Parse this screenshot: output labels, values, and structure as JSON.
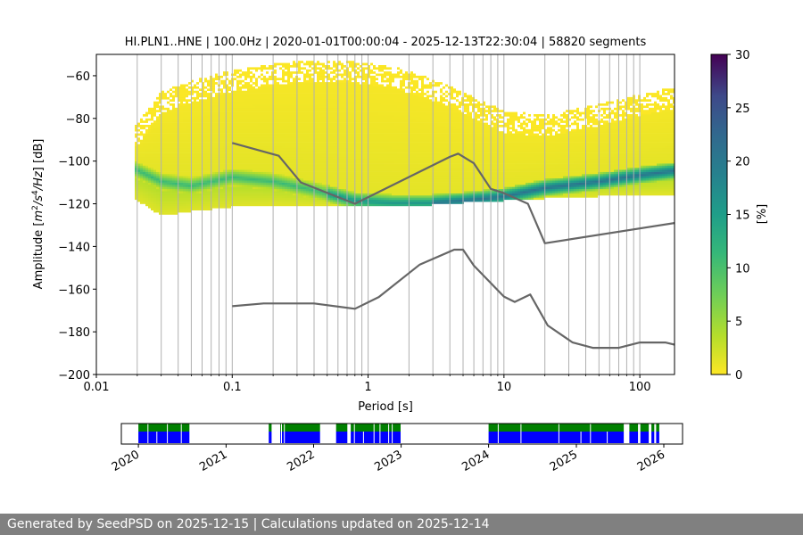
{
  "chart_data": [
    {
      "type": "heatmap",
      "title": "HI.PLN1..HNE | 100.0Hz | 2020-01-01T00:00:04 - 2025-12-13T22:30:04 | 58820 segments",
      "xlabel": "Period [s]",
      "ylabel_parts": [
        "Amplitude [",
        "m",
        "2",
        "/",
        "s",
        "4",
        "/",
        "Hz",
        "] [dB]"
      ],
      "xscale": "log",
      "xlim": [
        0.01,
        180
      ],
      "ylim": [
        -200,
        -50
      ],
      "x_ticks": [
        {
          "value": 0.01,
          "label": "0.01"
        },
        {
          "value": 0.1,
          "label": "0.1"
        },
        {
          "value": 1,
          "label": "1"
        },
        {
          "value": 10,
          "label": "10"
        },
        {
          "value": 100,
          "label": "100"
        }
      ],
      "y_ticks": [
        {
          "value": -60,
          "label": "−60"
        },
        {
          "value": -80,
          "label": "−80"
        },
        {
          "value": -100,
          "label": "−100"
        },
        {
          "value": -120,
          "label": "−120"
        },
        {
          "value": -140,
          "label": "−140"
        },
        {
          "value": -160,
          "label": "−160"
        },
        {
          "value": -180,
          "label": "−180"
        },
        {
          "value": -200,
          "label": "−200"
        }
      ],
      "grid": "vertical log minor gridlines",
      "colormap": "viridis_r",
      "colorbar": {
        "label": "[%]",
        "range": [
          0,
          30
        ],
        "ticks": [
          {
            "value": 0,
            "label": "0"
          },
          {
            "value": 5,
            "label": "5"
          },
          {
            "value": 10,
            "label": "10"
          },
          {
            "value": 15,
            "label": "15"
          },
          {
            "value": 20,
            "label": "20"
          },
          {
            "value": 25,
            "label": "25"
          },
          {
            "value": 30,
            "label": "30"
          }
        ]
      },
      "psd_envelope": {
        "period": [
          0.019,
          0.03,
          0.05,
          0.1,
          0.2,
          0.4,
          0.8,
          1.5,
          3,
          5,
          10,
          20,
          50,
          100,
          180
        ],
        "upper_db": [
          -85,
          -68,
          -63,
          -58,
          -55,
          -53,
          -54,
          -56,
          -62,
          -68,
          -77,
          -79,
          -74,
          -69,
          -66
        ],
        "lower_db": [
          -118,
          -126,
          -124,
          -122,
          -121,
          -121,
          -121,
          -121,
          -121,
          -120,
          -119,
          -118,
          -117,
          -116,
          -116
        ],
        "mode_db": [
          -104,
          -110,
          -112,
          -108,
          -110,
          -114,
          -119,
          -120,
          -120,
          -119,
          -117,
          -113,
          -110,
          -107,
          -105
        ]
      },
      "series": [
        {
          "x": [
            0.1,
            0.22,
            0.32,
            0.8,
            4,
            4.6,
            6,
            8,
            10,
            15,
            20,
            180
          ],
          "y": [
            -91.5,
            -97.5,
            -110,
            -120,
            -98,
            -96.5,
            -101,
            -113,
            -115,
            -120,
            -138.5,
            -129
          ],
          "color": "#666666"
        },
        {
          "x": [
            0.1,
            0.17,
            0.4,
            0.8,
            1.2,
            2.4,
            4.3,
            5,
            6,
            10,
            12,
            15.6,
            21,
            32,
            45,
            70,
            100,
            154,
            180
          ],
          "y": [
            -168,
            -166.7,
            -166.7,
            -169.2,
            -163.7,
            -148.5,
            -141.5,
            -141.5,
            -149,
            -163.5,
            -166,
            -162.5,
            -177,
            -185,
            -187.5,
            -187.5,
            -185,
            -185,
            -186
          ],
          "color": "#666666"
        }
      ]
    },
    {
      "type": "timeline",
      "xlim": [
        "2019-10-22",
        "2026-03-20"
      ],
      "x_ticks": [
        {
          "date": "2020-01-01",
          "label": "2020"
        },
        {
          "date": "2021-01-01",
          "label": "2021"
        },
        {
          "date": "2022-01-01",
          "label": "2022"
        },
        {
          "date": "2023-01-01",
          "label": "2023"
        },
        {
          "date": "2024-01-01",
          "label": "2024"
        },
        {
          "date": "2025-01-01",
          "label": "2025"
        },
        {
          "date": "2026-01-01",
          "label": "2026"
        }
      ],
      "tracks": [
        {
          "name": "green",
          "color": "#008000"
        },
        {
          "name": "blue",
          "color": "#0000ff"
        }
      ],
      "coverage_intervals": [
        [
          "2020-01-01",
          "2020-08-01"
        ],
        [
          "2021-06-28",
          "2021-07-10"
        ],
        [
          "2021-08-15",
          "2022-01-28"
        ],
        [
          "2022-04-05",
          "2022-05-22"
        ],
        [
          "2022-06-05",
          "2022-12-30"
        ],
        [
          "2024-01-01",
          "2025-07-18"
        ],
        [
          "2025-08-10",
          "2025-09-15"
        ],
        [
          "2025-09-25",
          "2025-10-30"
        ],
        [
          "2025-11-10",
          "2025-11-22"
        ],
        [
          "2025-11-30",
          "2025-12-13"
        ]
      ],
      "green_gaps": [
        "2020-02-10",
        "2020-05-01",
        "2020-06-28",
        "2021-08-20",
        "2021-09-01",
        "2022-06-20",
        "2022-09-10",
        "2022-10-05",
        "2022-11-10",
        "2022-11-25",
        "2024-02-10",
        "2024-05-15",
        "2024-10-20",
        "2025-03-01"
      ],
      "blue_gaps": [
        "2020-02-10",
        "2020-03-18",
        "2020-05-01",
        "2020-06-28",
        "2021-08-20",
        "2021-09-01",
        "2022-06-20",
        "2022-07-28",
        "2022-09-10",
        "2022-10-05",
        "2022-11-10",
        "2022-11-25",
        "2024-02-10",
        "2024-05-15",
        "2024-10-20",
        "2025-01-20",
        "2025-03-01",
        "2025-05-10"
      ]
    }
  ],
  "footer": {
    "text": "Generated by SeedPSD on 2025-12-15 | Calculations updated on 2025-12-14"
  }
}
